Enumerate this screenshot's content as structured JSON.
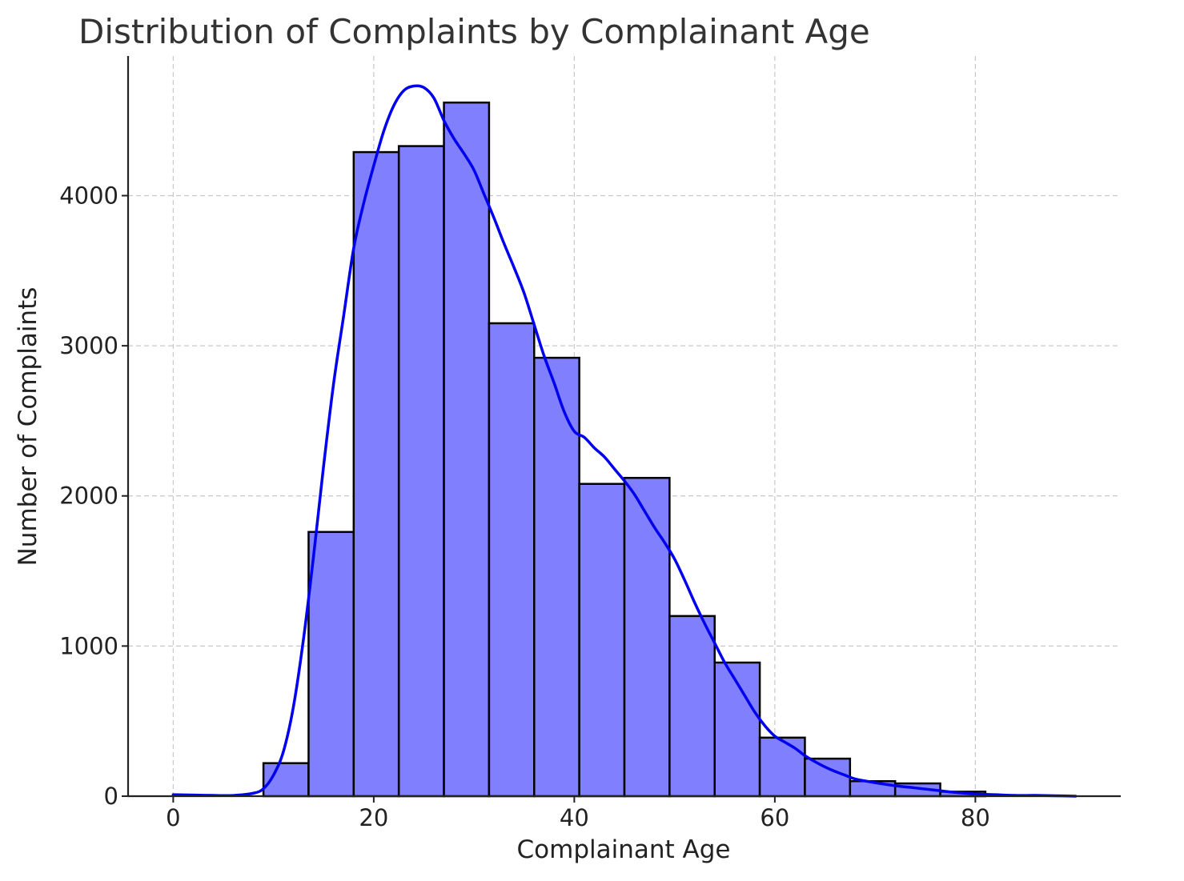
{
  "chart_data": {
    "type": "bar",
    "title": "Distribution of Complaints by Complainant Age",
    "xlabel": "Complainant Age",
    "ylabel": "Number of Complaints",
    "xlim": [
      -4.5,
      94.5
    ],
    "ylim": [
      0,
      4930
    ],
    "x_ticks": [
      0,
      20,
      40,
      60,
      80
    ],
    "y_ticks": [
      0,
      1000,
      2000,
      3000,
      4000
    ],
    "grid": true,
    "colors": {
      "bar_fill": "#8080ff",
      "bar_edge": "#000000",
      "kde": "#0000ee",
      "grid": "#c8c8c8",
      "axis": "#222222"
    },
    "bins": [
      {
        "x0": 9.0,
        "x1": 13.5,
        "value": 220
      },
      {
        "x0": 13.5,
        "x1": 18.0,
        "value": 1760
      },
      {
        "x0": 18.0,
        "x1": 22.5,
        "value": 4290
      },
      {
        "x0": 22.5,
        "x1": 27.0,
        "value": 4330
      },
      {
        "x0": 27.0,
        "x1": 31.5,
        "value": 4620
      },
      {
        "x0": 31.5,
        "x1": 36.0,
        "value": 3150
      },
      {
        "x0": 36.0,
        "x1": 40.5,
        "value": 2920
      },
      {
        "x0": 40.5,
        "x1": 45.0,
        "value": 2080
      },
      {
        "x0": 45.0,
        "x1": 49.5,
        "value": 2120
      },
      {
        "x0": 49.5,
        "x1": 54.0,
        "value": 1200
      },
      {
        "x0": 54.0,
        "x1": 58.5,
        "value": 890
      },
      {
        "x0": 58.5,
        "x1": 63.0,
        "value": 390
      },
      {
        "x0": 63.0,
        "x1": 67.5,
        "value": 250
      },
      {
        "x0": 67.5,
        "x1": 72.0,
        "value": 100
      },
      {
        "x0": 72.0,
        "x1": 76.5,
        "value": 85
      },
      {
        "x0": 76.5,
        "x1": 81.0,
        "value": 30
      }
    ],
    "kde": {
      "x": [
        0,
        4,
        6,
        8,
        9,
        10,
        11,
        12,
        13,
        14,
        15,
        16,
        17,
        18,
        19,
        20,
        21,
        22,
        23,
        24,
        25,
        26,
        27,
        28,
        29,
        30,
        31,
        32,
        33,
        34,
        35,
        36,
        37,
        38,
        39,
        40,
        41,
        42,
        43,
        44,
        45,
        46,
        47,
        48,
        49,
        50,
        51,
        52,
        53,
        54,
        55,
        56,
        57,
        58,
        59,
        60,
        61,
        62,
        63,
        64,
        65,
        66,
        67,
        68,
        70,
        72,
        74,
        76,
        78,
        80,
        82,
        84,
        86,
        88,
        90
      ],
      "y": [
        10,
        5,
        5,
        20,
        50,
        140,
        300,
        600,
        1050,
        1600,
        2200,
        2750,
        3200,
        3650,
        3950,
        4200,
        4430,
        4600,
        4700,
        4730,
        4720,
        4650,
        4500,
        4380,
        4280,
        4170,
        4010,
        3850,
        3680,
        3520,
        3350,
        3140,
        2930,
        2750,
        2560,
        2430,
        2390,
        2320,
        2260,
        2180,
        2100,
        2010,
        1900,
        1790,
        1690,
        1580,
        1440,
        1290,
        1150,
        1020,
        890,
        780,
        670,
        560,
        470,
        400,
        360,
        320,
        270,
        230,
        195,
        165,
        140,
        115,
        90,
        70,
        55,
        40,
        25,
        15,
        10,
        5,
        5,
        3,
        0
      ]
    }
  }
}
